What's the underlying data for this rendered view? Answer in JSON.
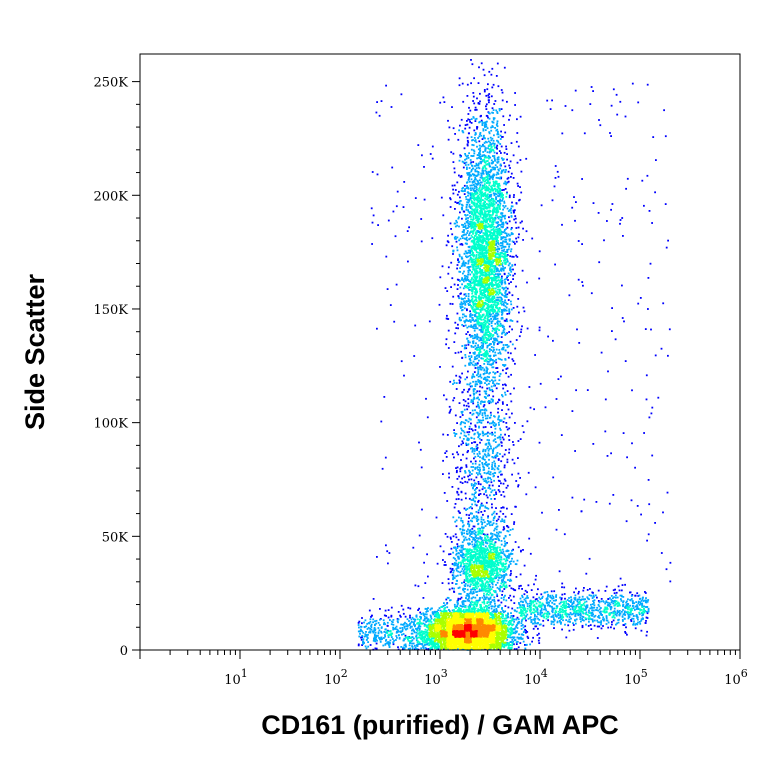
{
  "chart_data": {
    "type": "scatter",
    "title": "",
    "xlabel": "CD161 (purified) / GAM APC",
    "ylabel": "Side Scatter",
    "x_scale": "log",
    "xlim": [
      1,
      1000000
    ],
    "x_ticks": [
      {
        "value": 10,
        "base": "10",
        "exp": "1"
      },
      {
        "value": 100,
        "base": "10",
        "exp": "2"
      },
      {
        "value": 1000,
        "base": "10",
        "exp": "3"
      },
      {
        "value": 10000,
        "base": "10",
        "exp": "4"
      },
      {
        "value": 100000,
        "base": "10",
        "exp": "5"
      },
      {
        "value": 1000000,
        "base": "10",
        "exp": "6"
      }
    ],
    "ylim": [
      0,
      262144
    ],
    "y_ticks": [
      {
        "value": 0,
        "label": "0"
      },
      {
        "value": 50000,
        "label": "50K"
      },
      {
        "value": 100000,
        "label": "100K"
      },
      {
        "value": 150000,
        "label": "150K"
      },
      {
        "value": 200000,
        "label": "200K"
      },
      {
        "value": 250000,
        "label": "250K"
      }
    ],
    "grid": false,
    "legend": "none",
    "color_scale": [
      "#0000ff",
      "#00aaff",
      "#00ffcc",
      "#aaff00",
      "#ffff00",
      "#ff8800",
      "#ff0000"
    ],
    "populations": [
      {
        "name_desc": "granulocytes",
        "x_center": 2800,
        "y_center": 175000,
        "x_spread_decades": 0.13,
        "y_spread": 30000,
        "points": 3800
      },
      {
        "name_desc": "monocytes",
        "x_center": 2600,
        "y_center": 38000,
        "x_spread_decades": 0.15,
        "y_spread": 9000,
        "points": 1400
      },
      {
        "name_desc": "bridge",
        "x_center": 2600,
        "y_center": 85000,
        "x_spread_decades": 0.16,
        "y_spread": 20000,
        "points": 700
      },
      {
        "name_desc": "lymphocytes-negative",
        "x_center": 2000,
        "y_center": 9000,
        "x_spread_decades": 0.22,
        "y_spread": 5000,
        "points": 4200
      },
      {
        "name_desc": "lymphocytes-positive-tail",
        "x_range": [
          6000,
          120000
        ],
        "y_center": 18000,
        "y_spread": 4000,
        "points": 900
      },
      {
        "name_desc": "low-negative-tail",
        "x_range": [
          150,
          1200
        ],
        "y_center": 7000,
        "y_spread": 4500,
        "points": 500
      },
      {
        "name_desc": "sparse-scatter",
        "x_range": [
          200,
          200000
        ],
        "y_range": [
          5000,
          250000
        ],
        "points": 350
      }
    ]
  }
}
